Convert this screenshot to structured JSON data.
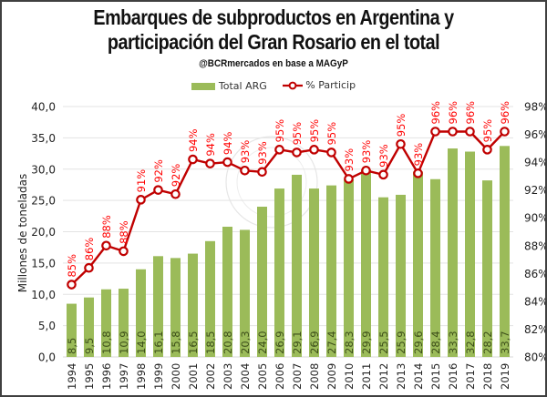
{
  "chart_data": {
    "type": "bar",
    "title_line1": "Embarques de subproductos en Argentina y",
    "title_line2": "participación del Gran Rosario en el total",
    "subtitle": "@BCRmercados en base a MAGyP",
    "ylabel": "Millones de toneladas",
    "ylim": [
      0,
      40
    ],
    "y2lim": [
      80,
      98
    ],
    "y_ticks": [
      "0,0",
      "5,0",
      "10,0",
      "15,0",
      "20,0",
      "25,0",
      "30,0",
      "35,0",
      "40,0"
    ],
    "y2_ticks": [
      "80%",
      "82%",
      "84%",
      "86%",
      "88%",
      "90%",
      "92%",
      "94%",
      "96%",
      "98%"
    ],
    "grid": true,
    "legend_position": "top",
    "categories": [
      "1994",
      "1995",
      "1996",
      "1997",
      "1998",
      "1999",
      "2000",
      "2001",
      "2002",
      "2003",
      "2004",
      "2005",
      "2006",
      "2007",
      "2008",
      "2009",
      "2010",
      "2011",
      "2012",
      "2013",
      "2014",
      "2015",
      "2016",
      "2017",
      "2018",
      "2019"
    ],
    "series": [
      {
        "name": "Total ARG",
        "kind": "bar",
        "axis": "left",
        "color": "#9bbb59",
        "values": [
          8.5,
          9.5,
          10.8,
          10.9,
          14.0,
          16.1,
          15.8,
          16.5,
          18.5,
          20.8,
          20.3,
          24.0,
          26.9,
          29.1,
          26.9,
          27.4,
          28.3,
          29.9,
          25.5,
          25.9,
          29.6,
          28.4,
          33.3,
          32.8,
          28.2,
          33.7
        ],
        "labels": [
          "8,5",
          "9,5",
          "10,8",
          "10,9",
          "14,0",
          "16,1",
          "15,8",
          "16,5",
          "18,5",
          "20,8",
          "20,3",
          "24,0",
          "26,9",
          "29,1",
          "26,9",
          "27,4",
          "28,3",
          "29,9",
          "25,5",
          "25,9",
          "29,6",
          "28,4",
          "33,3",
          "32,8",
          "28,2",
          "33,7"
        ]
      },
      {
        "name": "% Particip",
        "kind": "line",
        "axis": "right",
        "color": "#c00000",
        "label_color": "#ff0000",
        "values": [
          85.2,
          86.4,
          88.0,
          87.6,
          91.3,
          92.0,
          91.7,
          94.2,
          93.9,
          94.0,
          93.4,
          93.3,
          94.9,
          94.7,
          94.9,
          94.7,
          92.8,
          93.4,
          93.1,
          95.3,
          93.2,
          96.2,
          96.2,
          96.2,
          94.9,
          96.2
        ],
        "labels": [
          "85%",
          "86%",
          "88%",
          "88%",
          "91%",
          "92%",
          "92%",
          "94%",
          "94%",
          "94%",
          "93%",
          "93%",
          "95%",
          "95%",
          "95%",
          "95%",
          "93%",
          "93%",
          "93%",
          "95%",
          "93%",
          "96%",
          "96%",
          "96%",
          "95%",
          "96%"
        ]
      }
    ]
  }
}
